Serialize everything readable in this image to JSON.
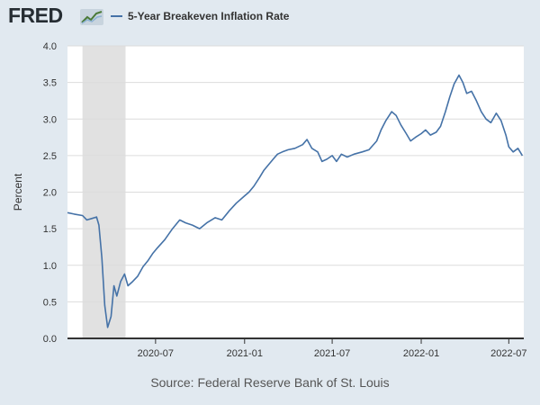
{
  "brand": {
    "name": "FRED",
    "mark_icon": "line-graph-icon"
  },
  "legend": {
    "label": "5-Year Breakeven Inflation Rate",
    "color": "#4572a7"
  },
  "source": "Source: Federal Reserve Bank of St. Louis",
  "colors": {
    "background": "#e1e9f0",
    "plot_background": "#ffffff",
    "series": "#4572a7",
    "recession": "#e1e1e1",
    "grid": "#dcdcdc"
  },
  "chart_data": {
    "type": "line",
    "title": "",
    "xlabel": "",
    "ylabel": "Percent",
    "xlim": [
      "2020-01-01",
      "2022-08-01"
    ],
    "ylim": [
      0,
      4
    ],
    "y_ticks": [
      0.0,
      0.5,
      1.0,
      1.5,
      2.0,
      2.5,
      3.0,
      3.5,
      4.0
    ],
    "y_tick_labels": [
      "0.0",
      "0.5",
      "1.0",
      "1.5",
      "2.0",
      "2.5",
      "3.0",
      "3.5",
      "4.0"
    ],
    "x_ticks": [
      "2020-07-01",
      "2021-01-01",
      "2021-07-01",
      "2022-01-01",
      "2022-07-01"
    ],
    "x_tick_labels": [
      "2020-07",
      "2021-01",
      "2021-07",
      "2022-01",
      "2022-07"
    ],
    "grid": "horizontal",
    "legend_position": "top",
    "shaded_periods": [
      {
        "start": "2020-02-01",
        "end": "2020-04-30"
      }
    ],
    "series": [
      {
        "name": "5-Year Breakeven Inflation Rate",
        "x": [
          "2020-01-01",
          "2020-01-15",
          "2020-02-01",
          "2020-02-10",
          "2020-02-20",
          "2020-03-01",
          "2020-03-06",
          "2020-03-12",
          "2020-03-18",
          "2020-03-24",
          "2020-03-31",
          "2020-04-06",
          "2020-04-12",
          "2020-04-20",
          "2020-04-28",
          "2020-05-05",
          "2020-05-15",
          "2020-05-25",
          "2020-06-05",
          "2020-06-15",
          "2020-06-25",
          "2020-07-05",
          "2020-07-20",
          "2020-08-05",
          "2020-08-20",
          "2020-09-01",
          "2020-09-15",
          "2020-09-30",
          "2020-10-15",
          "2020-11-01",
          "2020-11-15",
          "2020-12-01",
          "2020-12-15",
          "2021-01-01",
          "2021-01-10",
          "2021-01-20",
          "2021-02-01",
          "2021-02-10",
          "2021-02-20",
          "2021-03-01",
          "2021-03-10",
          "2021-03-20",
          "2021-04-01",
          "2021-04-15",
          "2021-05-01",
          "2021-05-10",
          "2021-05-20",
          "2021-06-01",
          "2021-06-10",
          "2021-06-20",
          "2021-07-01",
          "2021-07-10",
          "2021-07-20",
          "2021-08-01",
          "2021-08-15",
          "2021-09-01",
          "2021-09-15",
          "2021-10-01",
          "2021-10-10",
          "2021-10-20",
          "2021-11-01",
          "2021-11-10",
          "2021-11-20",
          "2021-12-01",
          "2021-12-10",
          "2021-12-20",
          "2022-01-01",
          "2022-01-10",
          "2022-01-20",
          "2022-02-01",
          "2022-02-10",
          "2022-02-20",
          "2022-03-01",
          "2022-03-10",
          "2022-03-20",
          "2022-03-28",
          "2022-04-05",
          "2022-04-15",
          "2022-04-25",
          "2022-05-05",
          "2022-05-15",
          "2022-05-25",
          "2022-06-05",
          "2022-06-15",
          "2022-06-25",
          "2022-07-01",
          "2022-07-10",
          "2022-07-20",
          "2022-07-29"
        ],
        "y": [
          1.72,
          1.7,
          1.68,
          1.62,
          1.64,
          1.66,
          1.55,
          1.1,
          0.45,
          0.15,
          0.3,
          0.72,
          0.58,
          0.78,
          0.88,
          0.72,
          0.78,
          0.85,
          0.98,
          1.06,
          1.16,
          1.24,
          1.35,
          1.5,
          1.62,
          1.58,
          1.55,
          1.5,
          1.58,
          1.65,
          1.62,
          1.75,
          1.85,
          1.95,
          2.0,
          2.08,
          2.2,
          2.3,
          2.38,
          2.45,
          2.52,
          2.55,
          2.58,
          2.6,
          2.65,
          2.72,
          2.6,
          2.55,
          2.42,
          2.45,
          2.5,
          2.42,
          2.52,
          2.48,
          2.52,
          2.55,
          2.58,
          2.7,
          2.85,
          2.98,
          3.1,
          3.05,
          2.92,
          2.8,
          2.7,
          2.75,
          2.8,
          2.85,
          2.78,
          2.82,
          2.9,
          3.1,
          3.3,
          3.48,
          3.6,
          3.5,
          3.35,
          3.38,
          3.25,
          3.1,
          3.0,
          2.95,
          3.08,
          2.98,
          2.78,
          2.62,
          2.55,
          2.6,
          2.5
        ]
      }
    ]
  }
}
